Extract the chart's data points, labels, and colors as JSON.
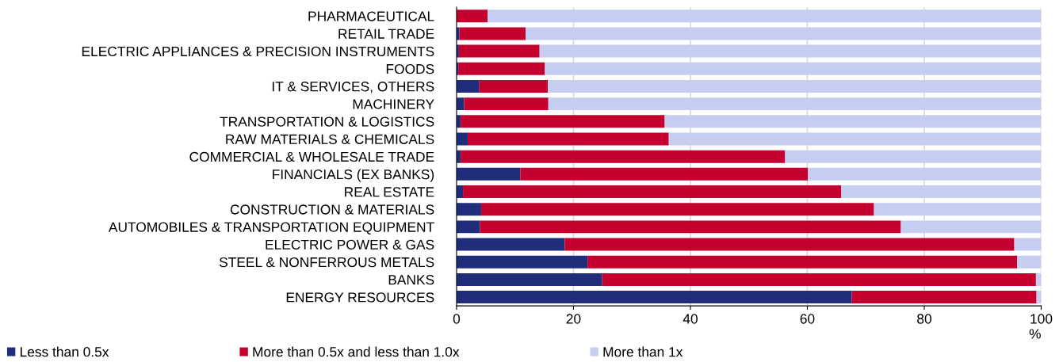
{
  "chart_data": {
    "type": "bar",
    "orientation": "horizontal",
    "stacked": true,
    "xlabel": "%",
    "categories": [
      "PHARMACEUTICAL",
      "RETAIL TRADE",
      "ELECTRIC APPLIANCES & PRECISION INSTRUMENTS",
      "FOODS",
      "IT & SERVICES, OTHERS",
      "MACHINERY",
      "TRANSPORTATION & LOGISTICS",
      "RAW MATERIALS & CHEMICALS",
      "COMMERCIAL & WHOLESALE TRADE",
      "FINANCIALS (EX BANKS)",
      "REAL ESTATE",
      "CONSTRUCTION & MATERIALS",
      "AUTOMOBILES & TRANSPORTATION EQUIPMENT",
      "ELECTRIC POWER & GAS",
      "STEEL & NONFERROUS METALS",
      "BANKS",
      "ENERGY RESOURCES"
    ],
    "series": [
      {
        "name": "Less than 0.5x",
        "color": "#1f2d7b",
        "values": [
          0,
          0.5,
          0.4,
          0.3,
          3.9,
          1.3,
          0.7,
          1.9,
          0.7,
          10.9,
          1.1,
          4.2,
          4.0,
          18.5,
          22.4,
          24.9,
          67.6
        ]
      },
      {
        "name": "More than 0.5x and less than 1.0x",
        "color": "#c4002f",
        "values": [
          5.3,
          11.3,
          13.8,
          14.8,
          11.7,
          14.4,
          34.9,
          34.4,
          55.5,
          49.2,
          64.7,
          67.2,
          72.0,
          76.9,
          73.5,
          74.2,
          31.6
        ]
      },
      {
        "name": "More than 1x",
        "color": "#c5cdf0",
        "values": [
          94.7,
          88.2,
          85.8,
          84.9,
          84.4,
          84.3,
          64.4,
          63.7,
          43.8,
          39.9,
          34.2,
          28.6,
          24.0,
          4.6,
          4.1,
          0.9,
          0.8
        ]
      }
    ],
    "xlim": [
      0,
      100
    ],
    "xticks": [
      0,
      20,
      40,
      60,
      80,
      100
    ],
    "grid": "x",
    "legend": "bottom"
  }
}
